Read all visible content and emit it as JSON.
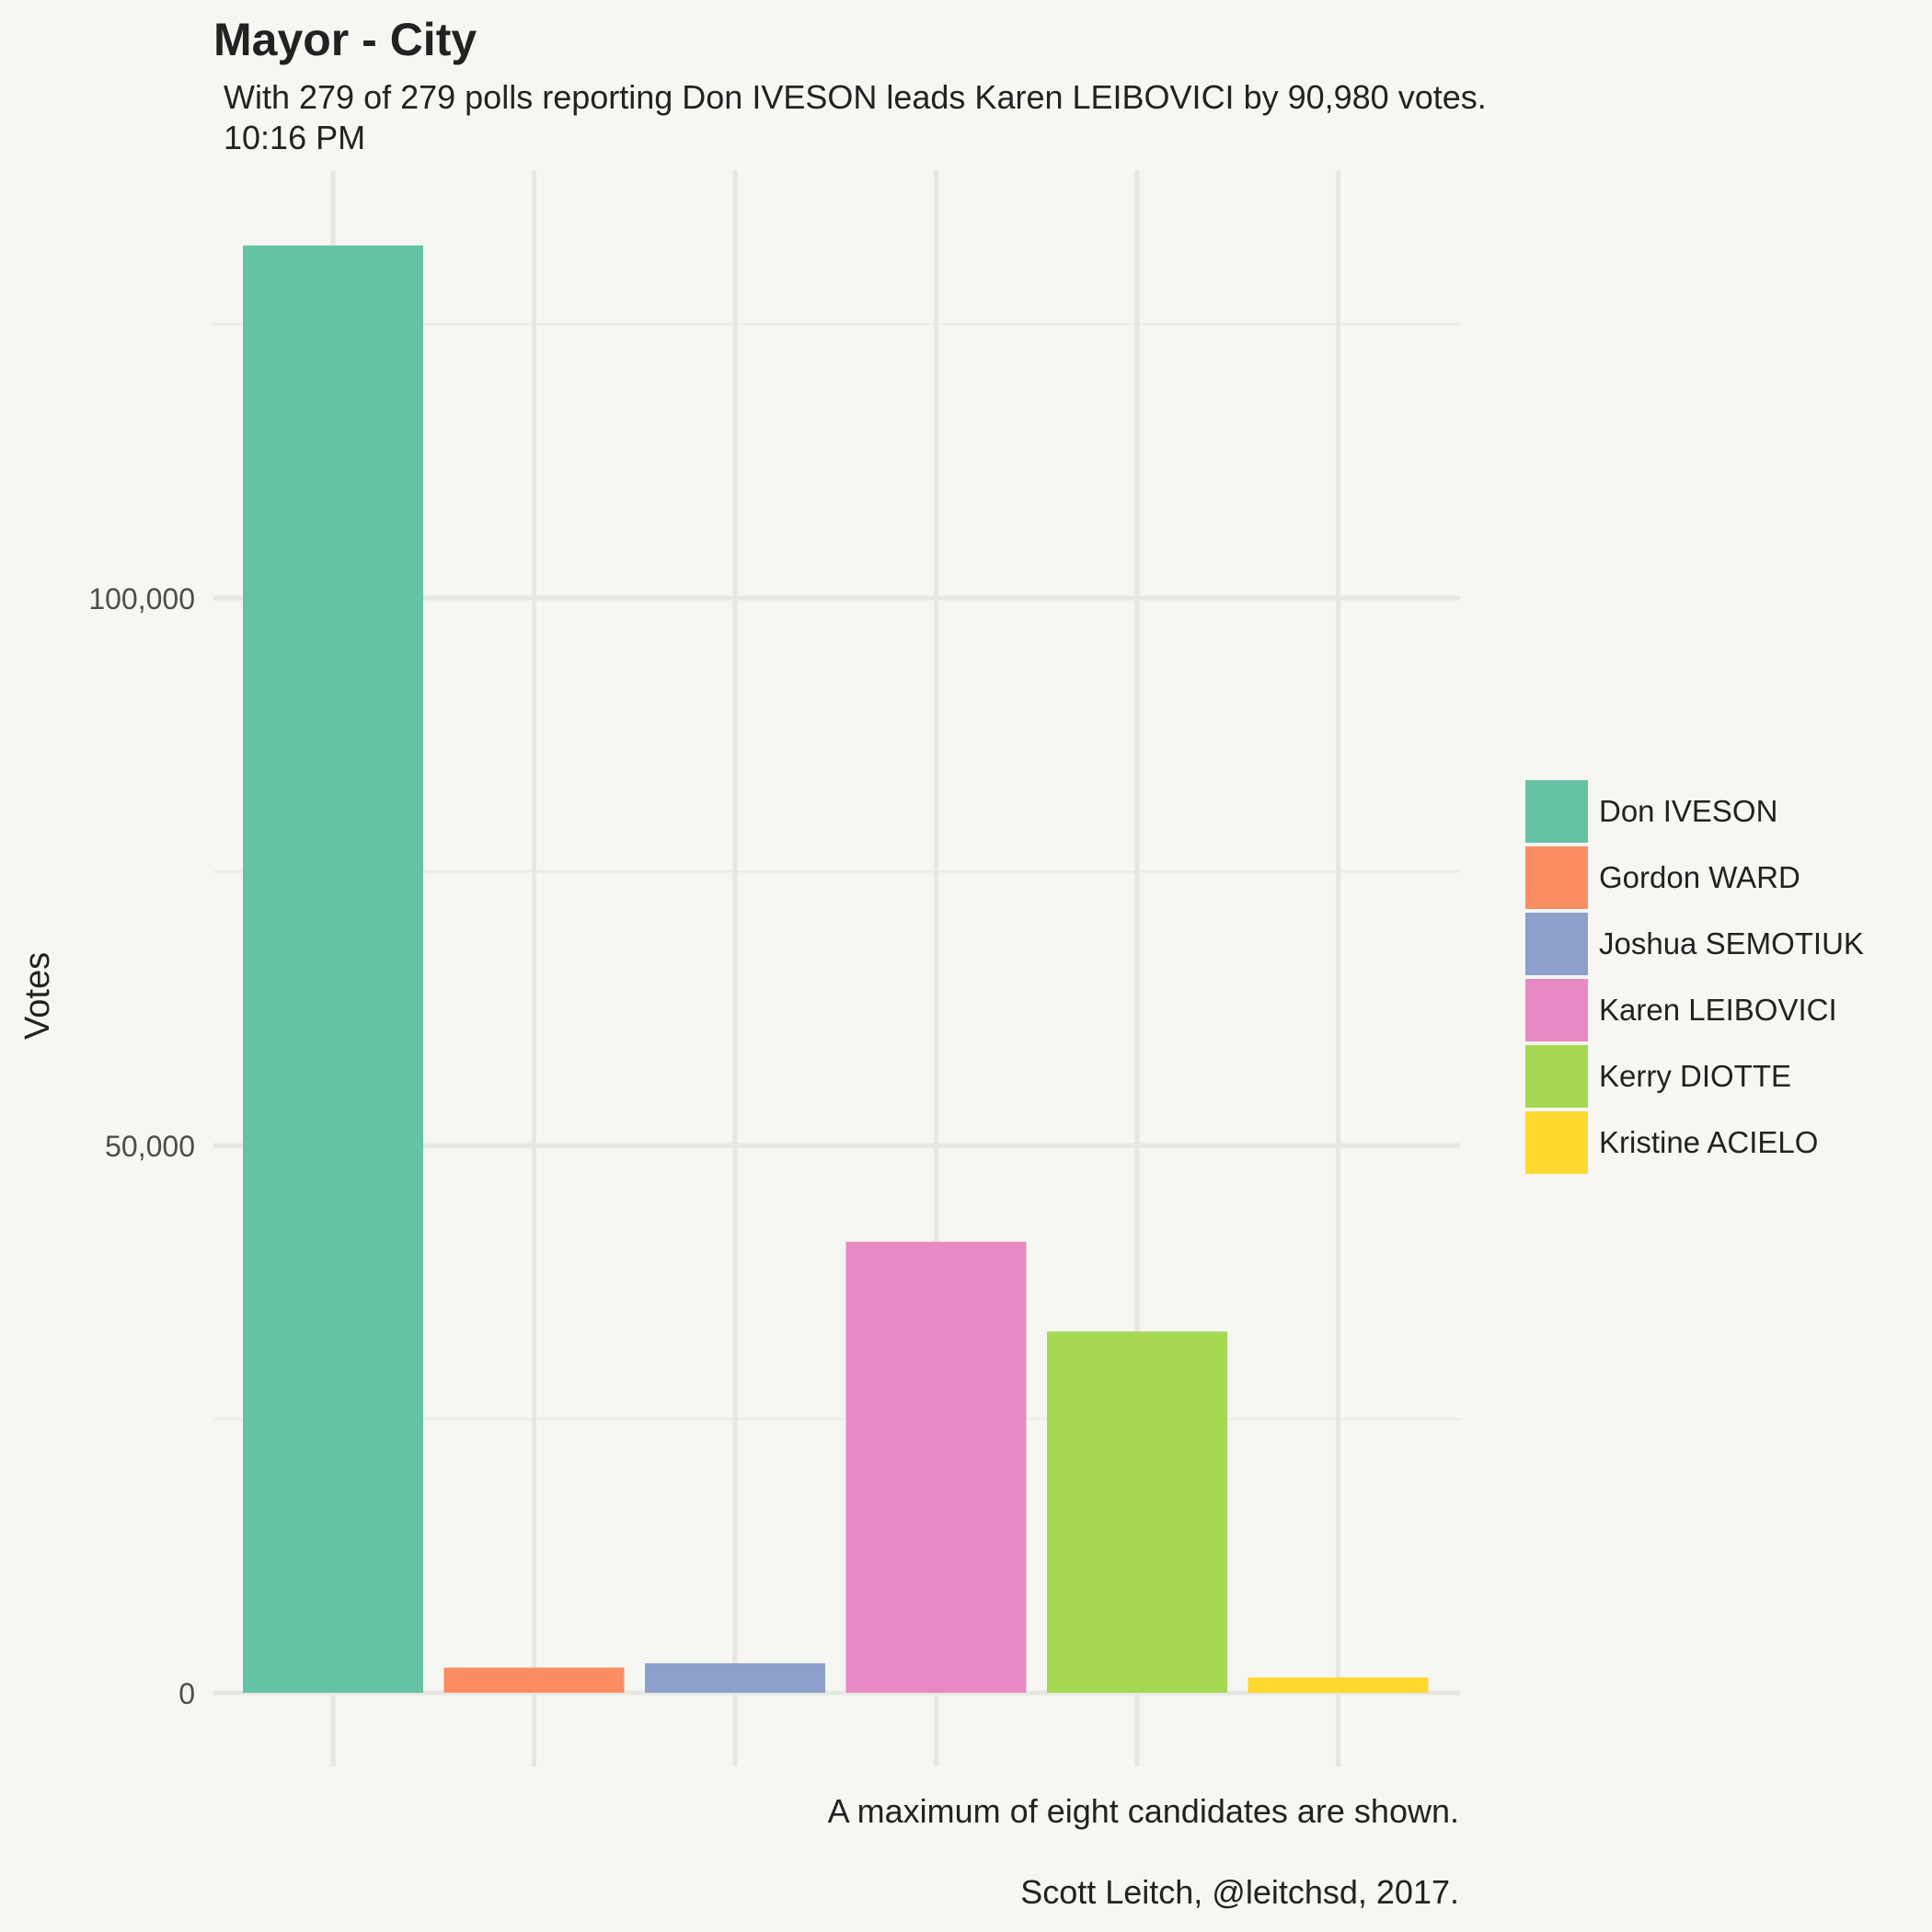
{
  "chart_data": {
    "type": "bar",
    "title": "Mayor - City",
    "subtitle_lines": [
      "With 279 of 279 polls reporting Don IVESON leads Karen LEIBOVICI by 90,980 votes.",
      "10:16 PM"
    ],
    "ylabel": "Votes",
    "xlabel": "",
    "ylim": [
      -4000,
      138000
    ],
    "y_ticks": [
      0,
      50000,
      100000
    ],
    "y_tick_labels": [
      "0",
      "50,000",
      "100,000"
    ],
    "y_minor_ticks": [
      25000,
      75000,
      125000
    ],
    "grid": true,
    "legend_position": "right",
    "categories": [
      "Don IVESON",
      "Gordon WARD",
      "Joshua SEMOTIUK",
      "Karen LEIBOVICI",
      "Kerry DIOTTE",
      "Kristine ACIELO"
    ],
    "values": [
      132200,
      2300,
      2700,
      41200,
      33000,
      1400
    ],
    "colors": [
      "#66c2a5",
      "#fc8d62",
      "#8da0cb",
      "#e78ac3",
      "#a6d854",
      "#ffd92f"
    ],
    "captions": [
      "A maximum of eight candidates are shown.",
      "Scott Leitch, @leitchsd, 2017."
    ]
  }
}
